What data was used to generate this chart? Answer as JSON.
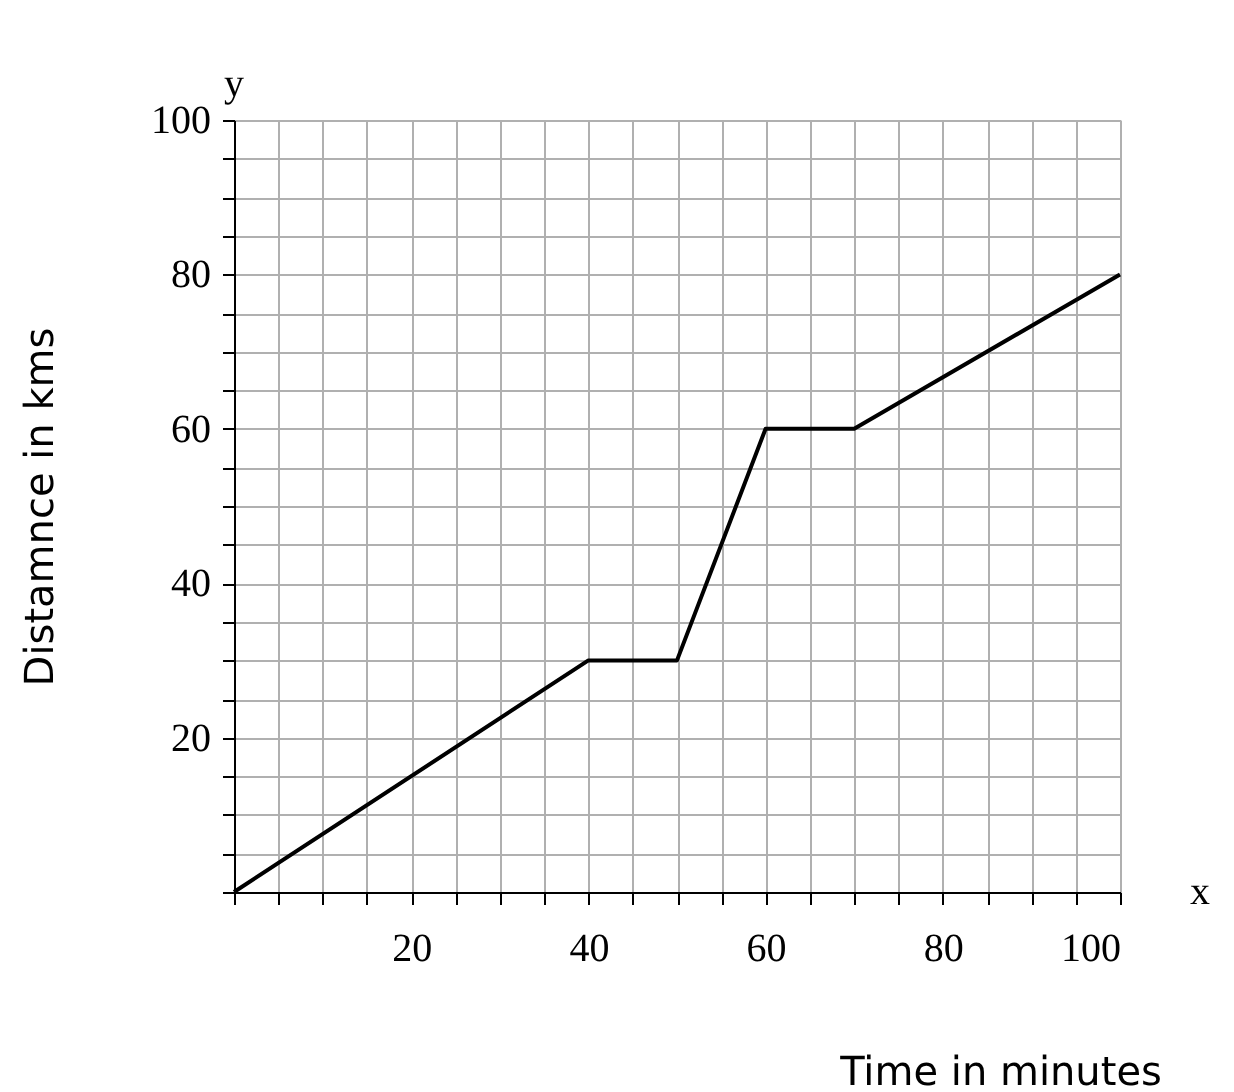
{
  "chart_data": {
    "type": "line",
    "xlabel": "Time in minutes",
    "ylabel": "Distamnce in kms",
    "annotations": [
      "y",
      "x"
    ],
    "x": [
      0,
      40,
      50,
      60,
      70,
      100
    ],
    "series": [
      {
        "color": "#000000",
        "values": [
          0,
          30,
          30,
          60,
          60,
          80
        ]
      }
    ],
    "xlim": [
      0,
      100
    ],
    "ylim": [
      0,
      100
    ],
    "xticks": [
      {
        "value": 0,
        "label": null
      },
      {
        "value": 5,
        "label": null
      },
      {
        "value": 10,
        "label": null
      },
      {
        "value": 15,
        "label": null
      },
      20,
      {
        "value": 25,
        "label": null
      },
      {
        "value": 30,
        "label": null
      },
      {
        "value": 35,
        "label": null
      },
      40,
      {
        "value": 45,
        "label": null
      },
      {
        "value": 50,
        "label": null
      },
      {
        "value": 55,
        "label": null
      },
      60,
      {
        "value": 65,
        "label": null
      },
      {
        "value": 70,
        "label": null
      },
      {
        "value": 75,
        "label": null
      },
      80,
      {
        "value": 85,
        "label": null
      },
      {
        "value": 90,
        "label": null
      },
      {
        "value": 95,
        "label": null
      },
      100
    ],
    "yticks": [
      {
        "value": 0,
        "label": null
      },
      {
        "value": 5,
        "label": null
      },
      {
        "value": 10,
        "label": null
      },
      {
        "value": 15,
        "label": null
      },
      20,
      {
        "value": 25,
        "label": null
      },
      {
        "value": 30,
        "label": null
      },
      {
        "value": 35,
        "label": null
      },
      40,
      {
        "value": 45,
        "label": null
      },
      {
        "value": 50,
        "label": null
      },
      {
        "value": 55,
        "label": null
      },
      60,
      {
        "value": 65,
        "label": null
      },
      {
        "value": 70,
        "label": null
      },
      {
        "value": 75,
        "label": null
      },
      80,
      {
        "value": 85,
        "label": null
      },
      {
        "value": 90,
        "label": null
      },
      {
        "value": 95,
        "label": null
      },
      100
    ],
    "grid": true,
    "marker": "none",
    "line_style": "solid"
  }
}
